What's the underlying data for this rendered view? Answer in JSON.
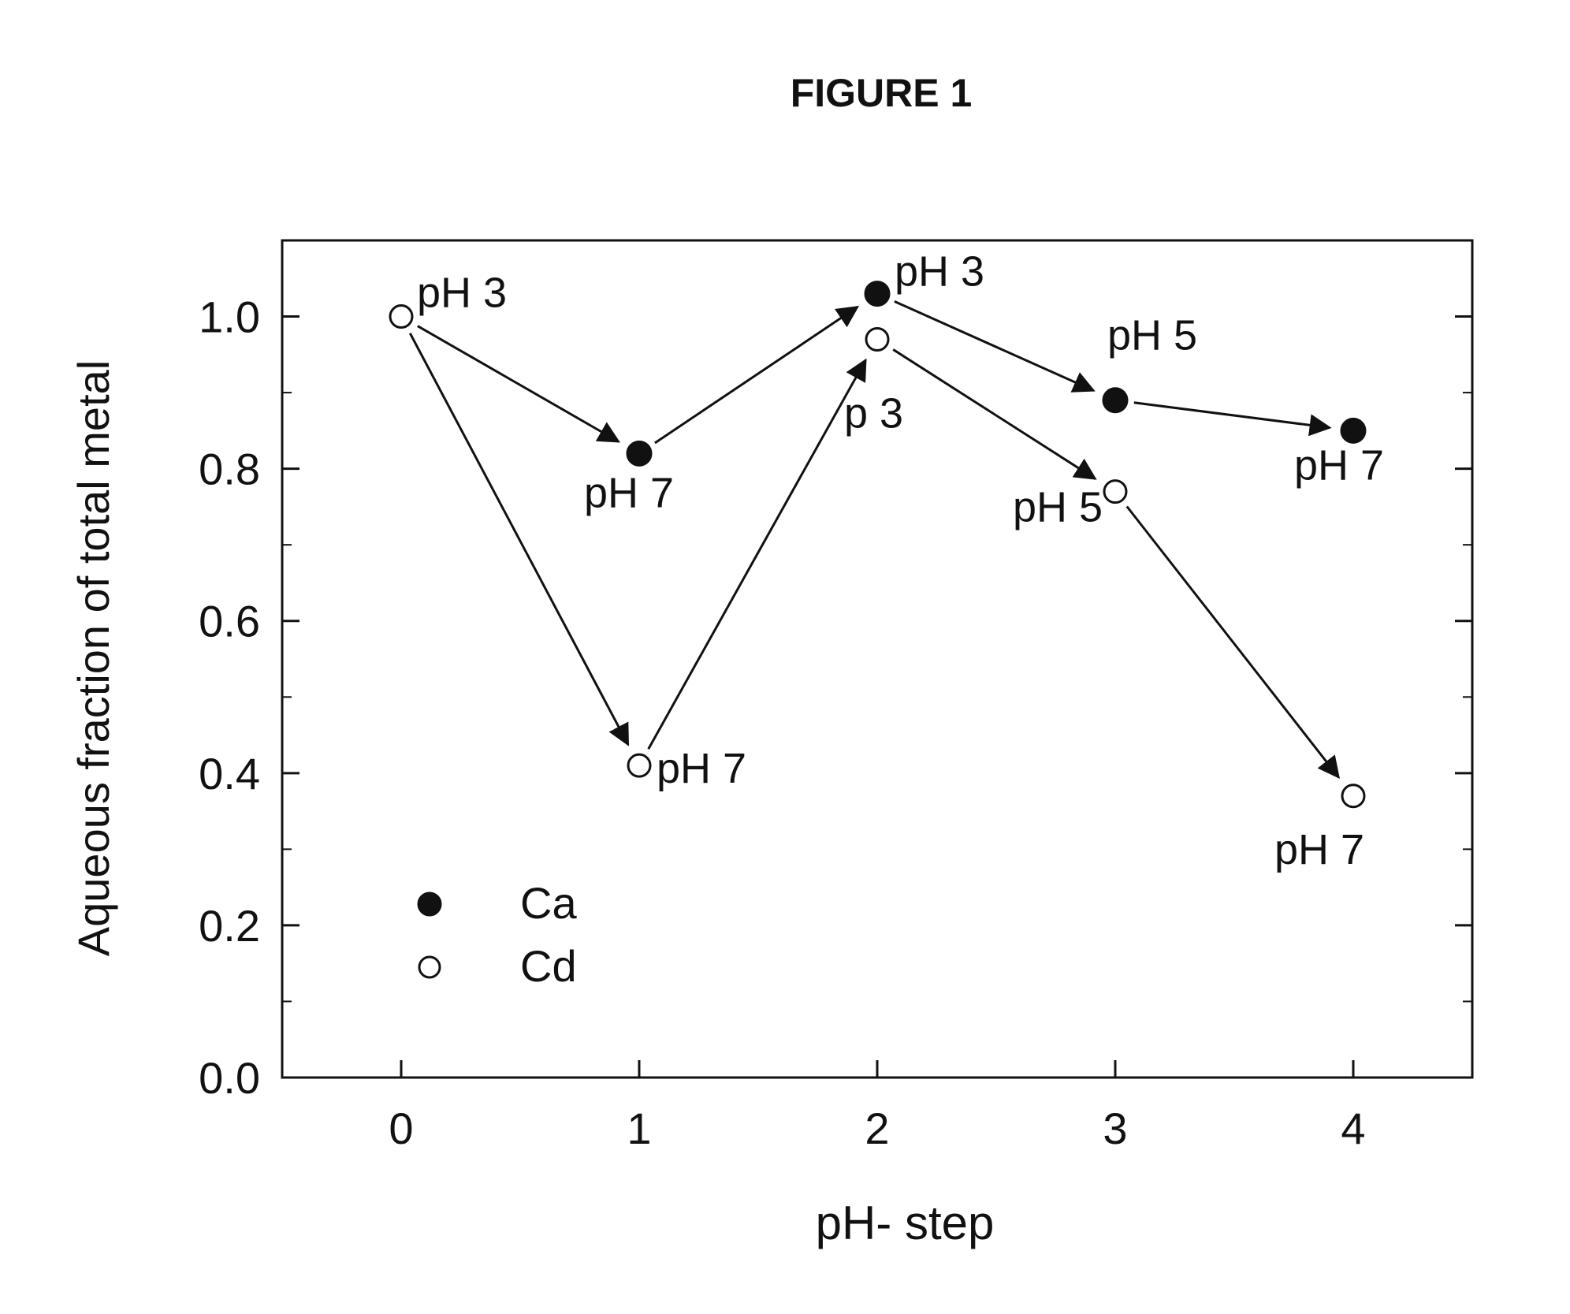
{
  "figure_title": "FIGURE 1",
  "colors": {
    "ink": "#111111",
    "background": "#ffffff"
  },
  "chart_data": {
    "type": "scatter",
    "title": "FIGURE 1",
    "xlabel": "pH- step",
    "ylabel": "Aqueous fraction of total metal",
    "xlim": [
      -0.5,
      4.5
    ],
    "ylim": [
      0.0,
      1.1
    ],
    "x_ticks": [
      "0",
      "1",
      "2",
      "3",
      "4"
    ],
    "y_ticks": [
      "0.0",
      "0.2",
      "0.4",
      "0.6",
      "0.8",
      "1.0"
    ],
    "grid": false,
    "legend_position": "bottom-left",
    "series": [
      {
        "name": "Ca",
        "marker": "filled-circle",
        "points": [
          {
            "x": 1,
            "y": 0.82,
            "label": "pH 7"
          },
          {
            "x": 2,
            "y": 1.03,
            "label": "pH 3"
          },
          {
            "x": 3,
            "y": 0.89,
            "label": "pH 5"
          },
          {
            "x": 4,
            "y": 0.85,
            "label": "pH 7"
          }
        ]
      },
      {
        "name": "Cd",
        "marker": "open-circle",
        "points": [
          {
            "x": 0,
            "y": 1.0,
            "label": "pH 3"
          },
          {
            "x": 1,
            "y": 0.41,
            "label": "pH 7"
          },
          {
            "x": 2,
            "y": 0.97,
            "label": "p 3"
          },
          {
            "x": 3,
            "y": 0.77,
            "label": "pH 5"
          },
          {
            "x": 4,
            "y": 0.37,
            "label": "pH 7"
          }
        ]
      }
    ],
    "arrows": [
      {
        "from": [
          0,
          1.0
        ],
        "to": [
          1,
          0.82
        ]
      },
      {
        "from": [
          1,
          0.82
        ],
        "to": [
          2,
          1.03
        ]
      },
      {
        "from": [
          2,
          1.03
        ],
        "to": [
          3,
          0.89
        ]
      },
      {
        "from": [
          3,
          0.89
        ],
        "to": [
          4,
          0.85
        ]
      },
      {
        "from": [
          0,
          1.0
        ],
        "to": [
          1,
          0.41
        ]
      },
      {
        "from": [
          1,
          0.41
        ],
        "to": [
          2,
          0.97
        ]
      },
      {
        "from": [
          2,
          0.97
        ],
        "to": [
          3,
          0.77
        ]
      },
      {
        "from": [
          3,
          0.77
        ],
        "to": [
          4,
          0.37
        ]
      }
    ]
  }
}
